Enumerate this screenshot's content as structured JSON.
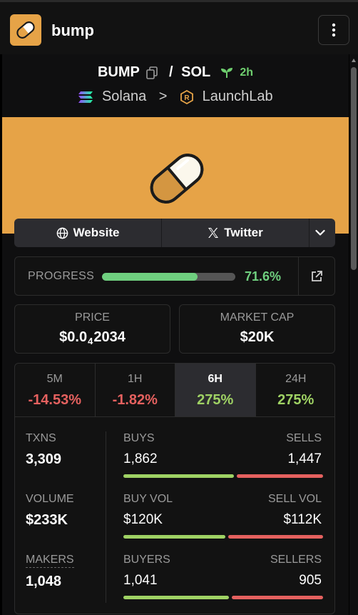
{
  "app": {
    "title": "bump"
  },
  "token": {
    "symbol": "BUMP",
    "separator": "/",
    "quote": "SOL",
    "age": "2h",
    "chain": "Solana",
    "chevron": ">",
    "launchpad": "LaunchLab"
  },
  "links": {
    "website": "Website",
    "twitter": "Twitter"
  },
  "progress": {
    "label": "PROGRESS",
    "value": "71.6%",
    "fraction": 0.716
  },
  "price": {
    "label": "PRICE",
    "prefix": "$0.0",
    "zeros": "4",
    "digits": "2034"
  },
  "market_cap": {
    "label": "MARKET CAP",
    "value": "$20K"
  },
  "tabs": [
    {
      "name": "5M",
      "value": "-14.53%"
    },
    {
      "name": "1H",
      "value": "-1.82%"
    },
    {
      "name": "6H",
      "value": "275%"
    },
    {
      "name": "24H",
      "value": "275%"
    }
  ],
  "stats": {
    "txns": {
      "label": "TXNS",
      "value": "3,309"
    },
    "volume": {
      "label": "VOLUME",
      "value": "$233K"
    },
    "makers": {
      "label": "MAKERS",
      "value": "1,048"
    },
    "buys": {
      "label": "BUYS",
      "value": "1,862",
      "ratio": 0.5627
    },
    "sells": {
      "label": "SELLS",
      "value": "1,447"
    },
    "buy_vol": {
      "label": "BUY VOL",
      "value": "$120K",
      "ratio": 0.517
    },
    "sell_vol": {
      "label": "SELL VOL",
      "value": "$112K"
    },
    "buyers": {
      "label": "BUYERS",
      "value": "1,041",
      "ratio": 0.535
    },
    "sellers": {
      "label": "SELLERS",
      "value": "905"
    }
  },
  "colors": {
    "accent": "#e6a347",
    "positive": "#9fd264",
    "negative": "#e5615f",
    "progress": "#6fcf7f"
  }
}
